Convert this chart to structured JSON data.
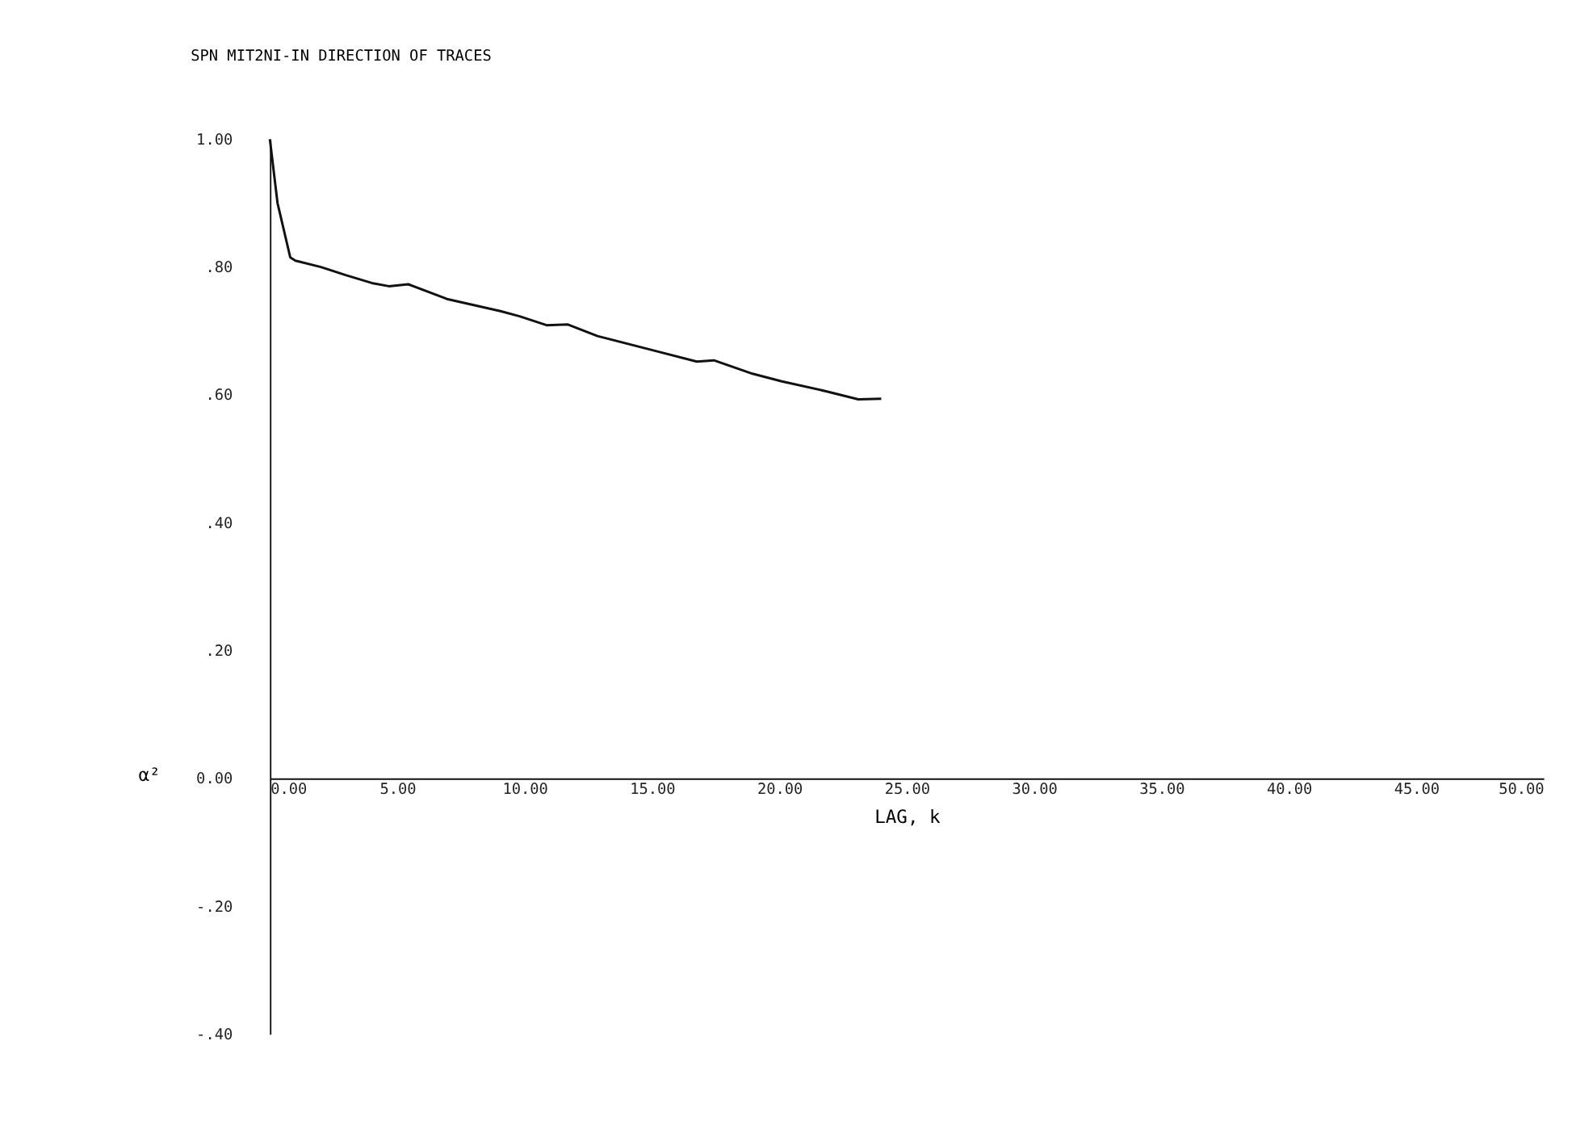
{
  "chart_data": {
    "type": "line",
    "title": "SPN MIT2NI-IN DIRECTION OF TRACES",
    "xlabel": "LAG, k",
    "ylabel": "α²",
    "x": [
      0,
      0.3,
      0.8,
      1,
      2,
      3,
      4,
      4.67,
      5.43,
      6.95,
      9.05,
      9.8,
      10.86,
      11.7,
      12.86,
      15.3,
      16.76,
      17.43,
      18.95,
      20.1,
      21.8,
      23.1,
      24.0
    ],
    "series": [
      {
        "color": "#111111",
        "values": [
          1.0,
          0.9,
          0.815,
          0.81,
          0.8,
          0.787,
          0.775,
          0.77,
          0.773,
          0.75,
          0.731,
          0.723,
          0.709,
          0.71,
          0.692,
          0.667,
          0.652,
          0.654,
          0.633,
          0.621,
          0.606,
          0.593,
          0.594
        ]
      }
    ],
    "xlim": [
      0,
      50
    ],
    "xticks": [
      {
        "value": 0,
        "label": "0.00"
      },
      {
        "value": 5,
        "label": "5.00"
      },
      {
        "value": 10,
        "label": "10.00"
      },
      {
        "value": 15,
        "label": "15.00"
      },
      {
        "value": 20,
        "label": "20.00"
      },
      {
        "value": 25,
        "label": "25.00"
      },
      {
        "value": 30,
        "label": "30.00"
      },
      {
        "value": 35,
        "label": "35.00"
      },
      {
        "value": 40,
        "label": "40.00"
      },
      {
        "value": 45,
        "label": "45.00"
      },
      {
        "value": 50,
        "label": "50.00"
      }
    ],
    "ylim": [
      -0.4,
      1.0
    ],
    "yticks": [
      {
        "value": -0.4,
        "label": "-.40"
      },
      {
        "value": -0.2,
        "label": "-.20"
      },
      {
        "value": 0,
        "label": "0.00"
      },
      {
        "value": 0.2,
        "label": ".20"
      },
      {
        "value": 0.4,
        "label": ".40"
      },
      {
        "value": 0.6,
        "label": ".60"
      },
      {
        "value": 0.8,
        "label": ".80"
      },
      {
        "value": 1.0,
        "label": "1.00"
      }
    ],
    "grid": false
  }
}
